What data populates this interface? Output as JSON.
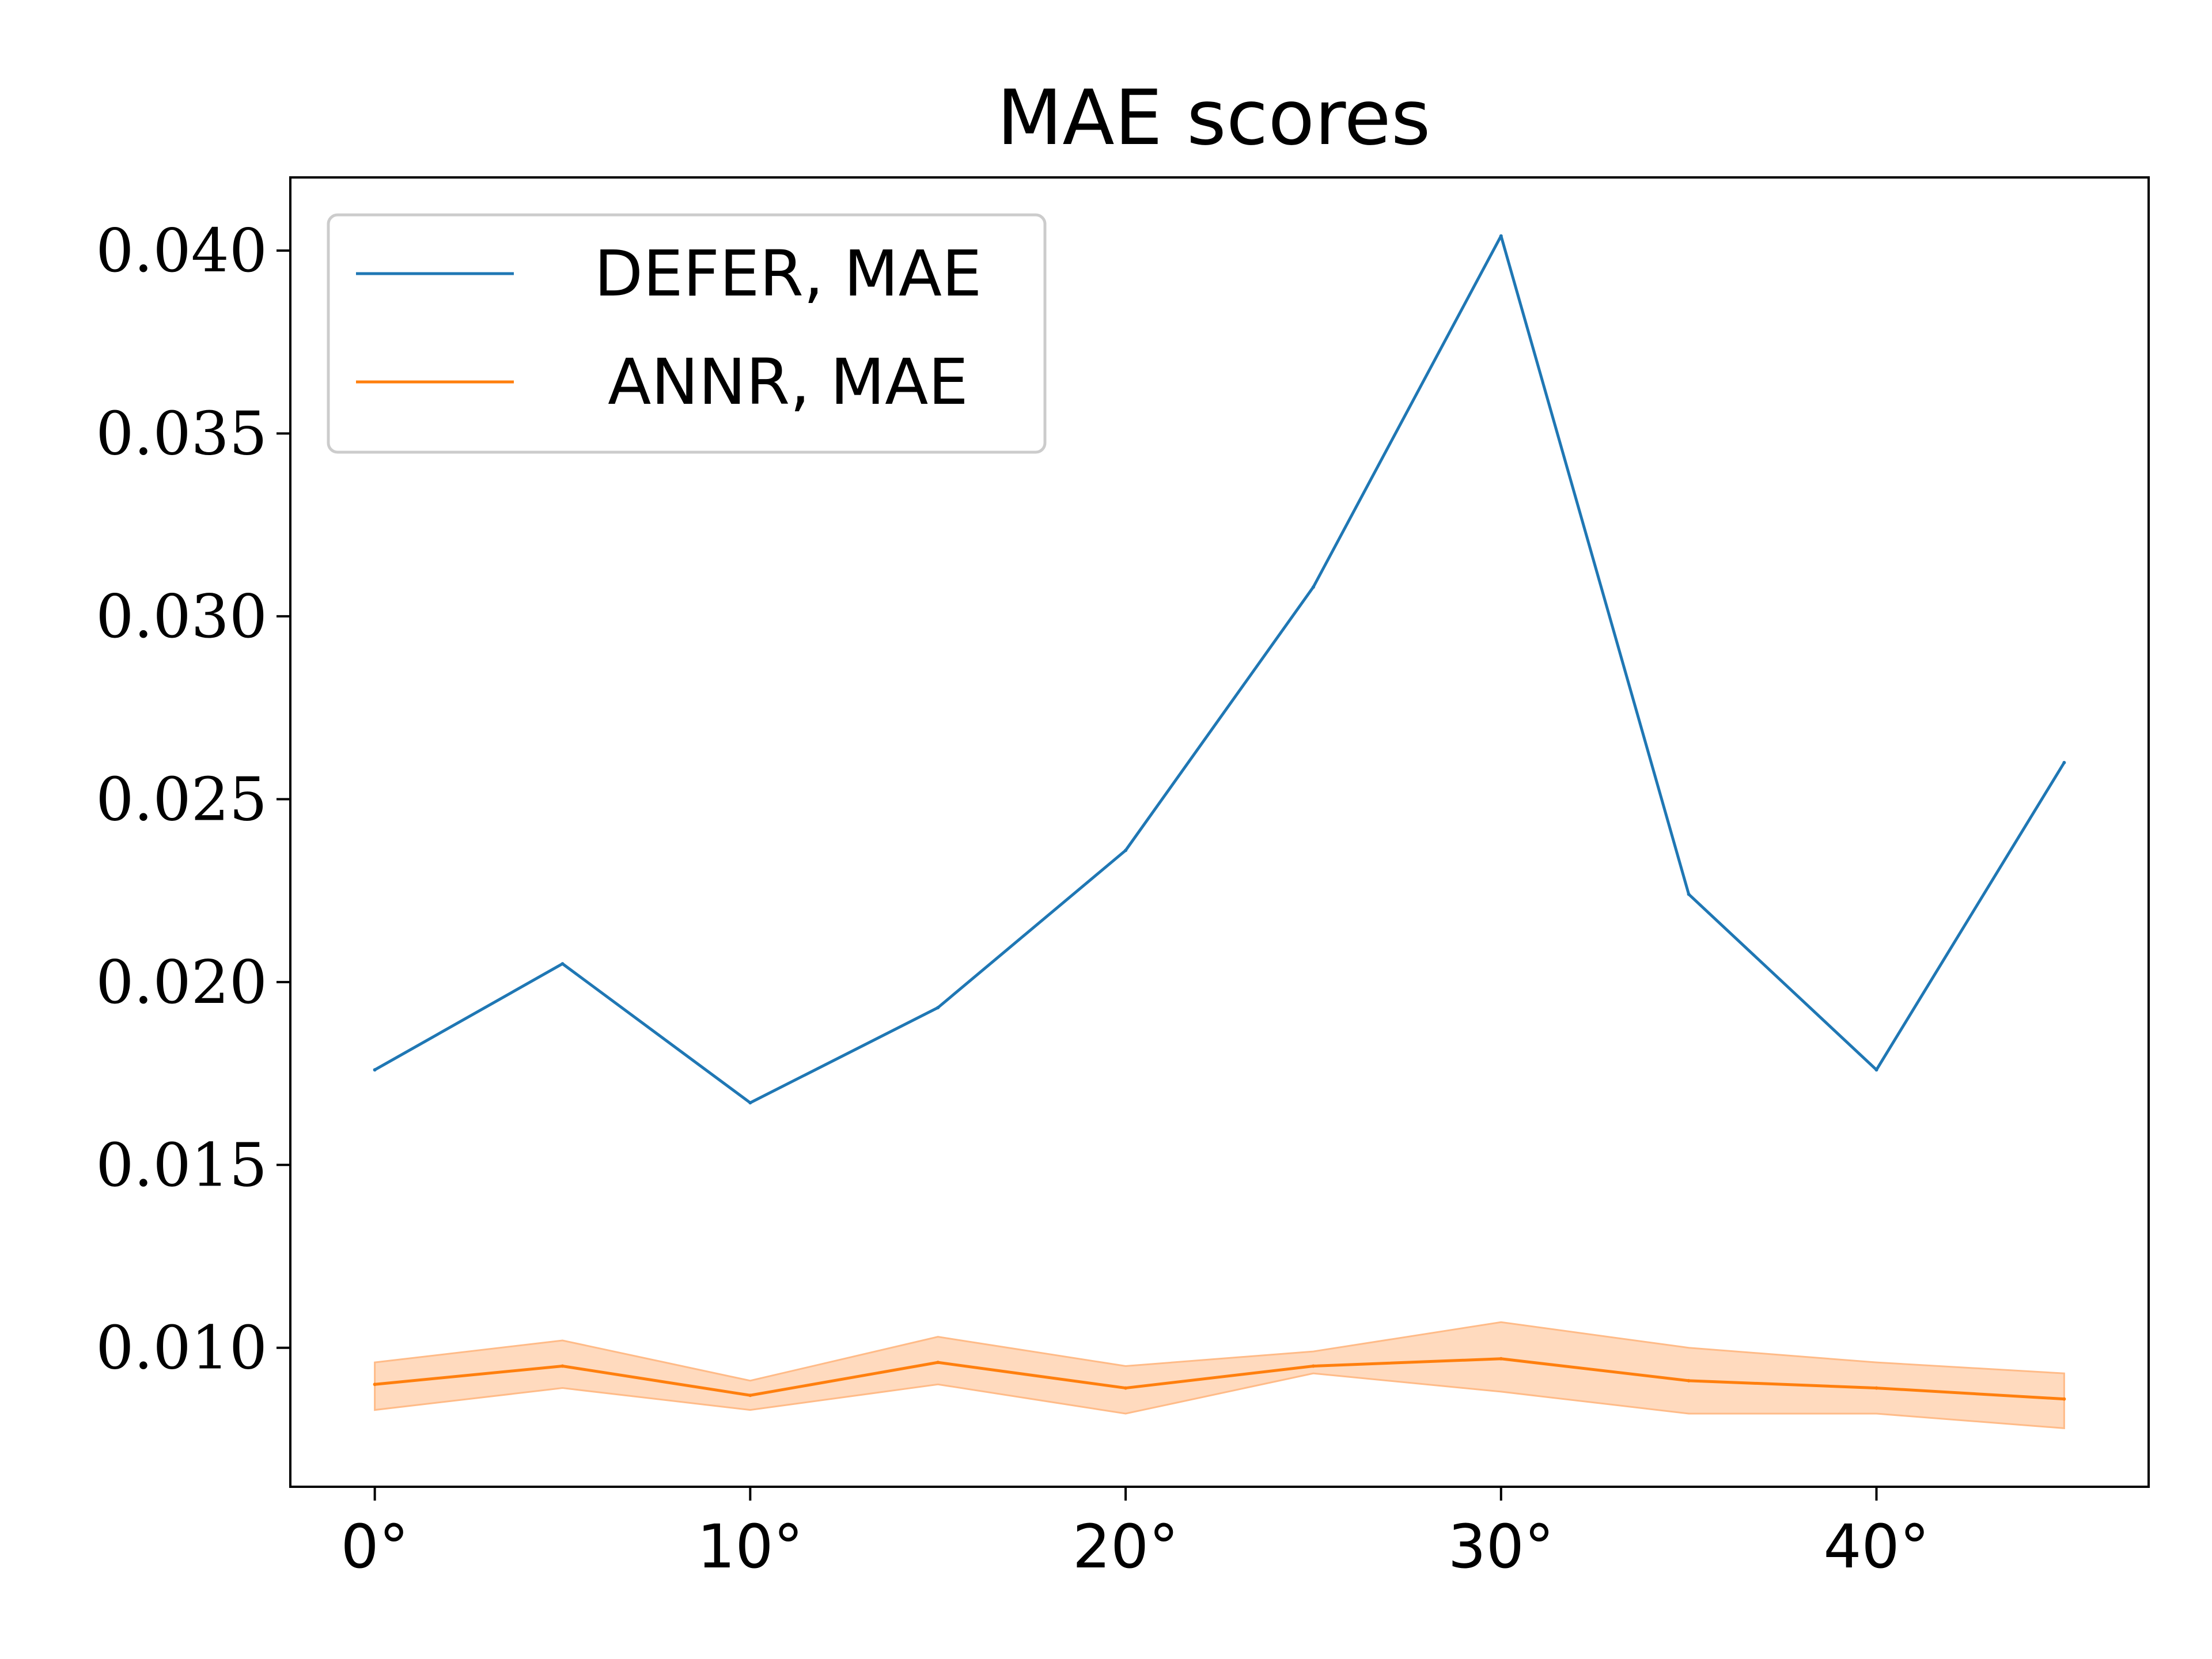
{
  "chart_data": {
    "type": "line",
    "title": "MAE scores",
    "x": [
      0,
      5,
      10,
      15,
      20,
      25,
      30,
      35,
      40,
      45
    ],
    "xticks": [
      0,
      10,
      20,
      30,
      40
    ],
    "xtick_labels": [
      "0°",
      "10°",
      "20°",
      "30°",
      "40°"
    ],
    "xlim": [
      -2.25,
      47.25
    ],
    "yticks": [
      0.01,
      0.015,
      0.02,
      0.025,
      0.03,
      0.035,
      0.04
    ],
    "ytick_labels": [
      "0.010",
      "0.015",
      "0.020",
      "0.025",
      "0.030",
      "0.035",
      "0.040"
    ],
    "ylim": [
      0.0062,
      0.042
    ],
    "grid": false,
    "legend_position": "top-left",
    "series": [
      {
        "name": "DEFER, MAE",
        "color": "#1f77b4",
        "values": [
          0.0176,
          0.0205,
          0.0167,
          0.0193,
          0.0236,
          0.0308,
          0.0404,
          0.0224,
          0.0176,
          0.026
        ]
      },
      {
        "name": "ANNR, MAE",
        "color": "#ff7f0e",
        "values": [
          0.009,
          0.0095,
          0.0087,
          0.0096,
          0.0089,
          0.0095,
          0.0097,
          0.0091,
          0.0089,
          0.0086
        ],
        "band_upper": [
          0.0096,
          0.0102,
          0.0091,
          0.0103,
          0.0095,
          0.0099,
          0.0107,
          0.01,
          0.0096,
          0.0093
        ],
        "band_lower": [
          0.0083,
          0.0089,
          0.0083,
          0.009,
          0.0082,
          0.0093,
          0.0088,
          0.0082,
          0.0082,
          0.0078
        ],
        "band_color": "#ffbb88"
      }
    ]
  }
}
